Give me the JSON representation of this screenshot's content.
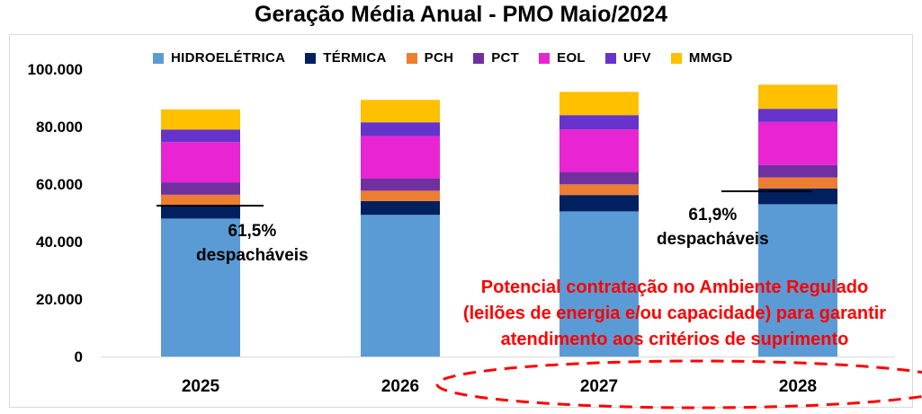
{
  "chart_data": {
    "type": "bar",
    "stacked": true,
    "title": "Geração Média Anual - PMO Maio/2024",
    "categories": [
      "2025",
      "2026",
      "2027",
      "2028"
    ],
    "ylim": [
      0,
      100000
    ],
    "ytick_labels": [
      "0",
      "20.000",
      "40.000",
      "60.000",
      "80.000",
      "100.000"
    ],
    "yticks": [
      0,
      20000,
      40000,
      60000,
      80000,
      100000
    ],
    "legend_position": "top",
    "grid": false,
    "series": [
      {
        "name": "HIDROELÉTRICA",
        "color": "#5b9bd5",
        "values": [
          48000,
          49300,
          50500,
          53000
        ]
      },
      {
        "name": "TÉRMICA",
        "color": "#002060",
        "values": [
          4800,
          4800,
          5700,
          5500
        ]
      },
      {
        "name": "PCH",
        "color": "#ed7d31",
        "values": [
          3500,
          3600,
          3700,
          3800
        ]
      },
      {
        "name": "PCT",
        "color": "#7030a0",
        "values": [
          4300,
          4300,
          4300,
          4300
        ]
      },
      {
        "name": "EOL",
        "color": "#e924d2",
        "values": [
          14000,
          14700,
          14800,
          15000
        ]
      },
      {
        "name": "UFV",
        "color": "#6633cc",
        "values": [
          4400,
          4800,
          5000,
          4600
        ]
      },
      {
        "name": "MMGD",
        "color": "#ffc000",
        "values": [
          7000,
          7800,
          8100,
          8400
        ]
      }
    ],
    "annotations": [
      {
        "line1": "61,5%",
        "line2": "despacháveis",
        "category": "2025",
        "level": 52500
      },
      {
        "line1": "61,9%",
        "line2": "despacháveis",
        "category": "2028",
        "level": 57500
      }
    ],
    "note_lines": [
      "Potencial contratação no Ambiente Regulado",
      "(leilões de energia e/ou capacidade) para garantir",
      "atendimento aos critérios de suprimento"
    ],
    "note_color": "#ff0000",
    "highlight_categories": [
      "2027",
      "2028"
    ]
  }
}
